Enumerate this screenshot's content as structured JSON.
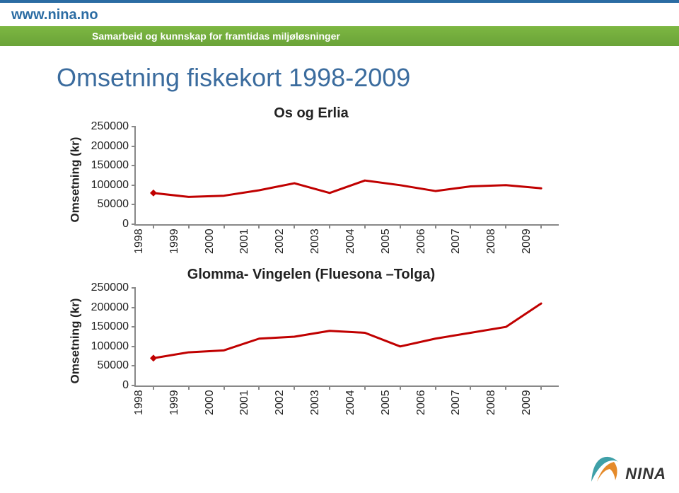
{
  "header": {
    "url": "www.nina.no",
    "tagline": "Samarbeid og kunnskap for framtidas miljøløsninger"
  },
  "page": {
    "title": "Omsetning fiskekort 1998-2009"
  },
  "chart1": {
    "type": "line",
    "title": "Os og Erlia",
    "ylabel": "Omsetning (kr)",
    "line_color": "#c00000",
    "line_width": 3,
    "marker_color": "#c00000",
    "axis_color": "#888888",
    "text_color": "#222222",
    "label_fontsize": 16,
    "title_fontsize": 20,
    "ylim": [
      0,
      250000
    ],
    "ytick_step": 50000,
    "yticks": [
      "0",
      "50000",
      "100000",
      "150000",
      "200000",
      "250000"
    ],
    "categories": [
      "1998",
      "1999",
      "2000",
      "2001",
      "2002",
      "2003",
      "2004",
      "2005",
      "2006",
      "2007",
      "2008",
      "2009"
    ],
    "values": [
      80000,
      70000,
      73000,
      87000,
      105000,
      80000,
      112000,
      100000,
      85000,
      97000,
      100000,
      92000
    ]
  },
  "chart2": {
    "type": "line",
    "title": "Glomma- Vingelen (Fluesona –Tolga)",
    "ylabel": "Omsetning (kr)",
    "line_color": "#c00000",
    "line_width": 3,
    "marker_color": "#c00000",
    "axis_color": "#888888",
    "text_color": "#222222",
    "label_fontsize": 16,
    "title_fontsize": 20,
    "ylim": [
      0,
      250000
    ],
    "ytick_step": 50000,
    "yticks": [
      "0",
      "50000",
      "100000",
      "150000",
      "200000",
      "250000"
    ],
    "categories": [
      "1998",
      "1999",
      "2000",
      "2001",
      "2002",
      "2003",
      "2004",
      "2005",
      "2006",
      "2007",
      "2008",
      "2009"
    ],
    "values": [
      70000,
      85000,
      90000,
      120000,
      125000,
      140000,
      135000,
      100000,
      120000,
      135000,
      150000,
      210000
    ]
  },
  "logo": {
    "text": "NINA",
    "colors": {
      "stroke": "#333333",
      "teal": "#3fa0a8",
      "orange": "#e58a2a"
    }
  }
}
